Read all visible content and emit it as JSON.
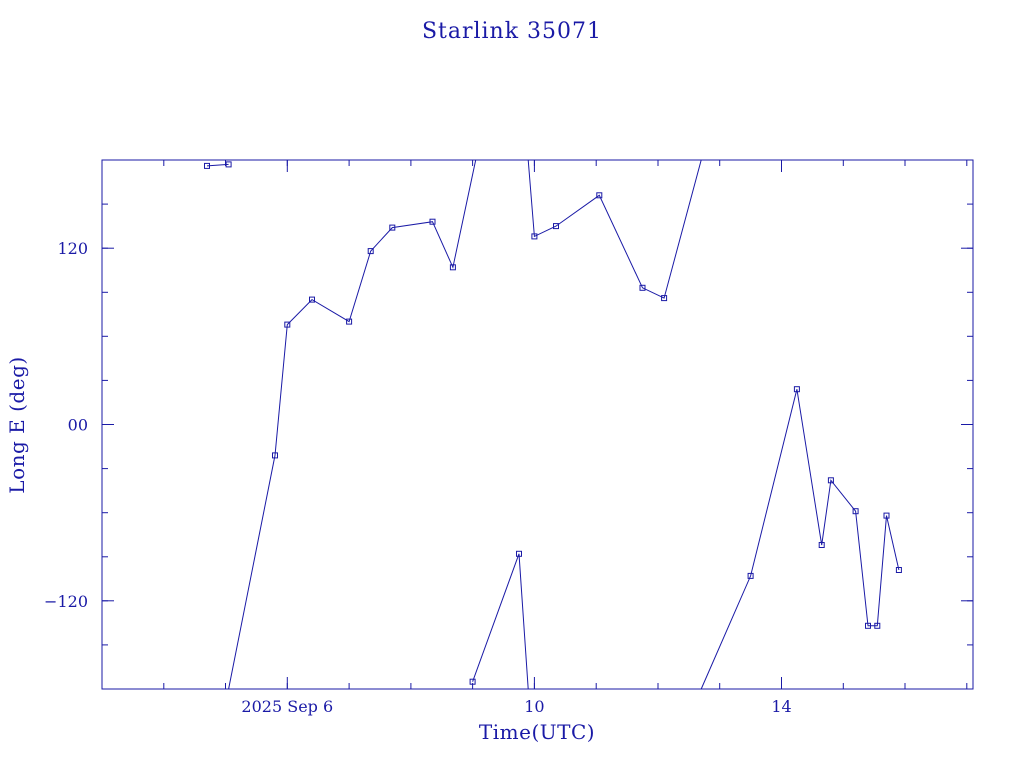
{
  "chart_data": {
    "type": "line",
    "title": "Starlink 35071",
    "xlabel": "Time(UTC)",
    "ylabel": "Long E (deg)",
    "colors": {
      "ink": "#1a1aa6"
    },
    "x_range_days": [
      3.0,
      17.1
    ],
    "ylim": [
      -180,
      180
    ],
    "x_reference": "2025-09-03T00:00Z",
    "x_ticks": [
      {
        "day": 6,
        "label": "2025 Sep  6"
      },
      {
        "day": 10,
        "label": "10"
      },
      {
        "day": 14,
        "label": "14"
      }
    ],
    "y_ticks": [
      {
        "value": 120,
        "label": "120"
      },
      {
        "value": 0,
        "label": "00"
      },
      {
        "value": -120,
        "label": "−120"
      }
    ],
    "grid": false,
    "segments": [
      {
        "points": [
          [
            4.7,
            176
          ],
          [
            5.05,
            177
          ]
        ]
      },
      {
        "points": [
          [
            5.05,
            -180
          ],
          [
            5.8,
            -21
          ],
          [
            6.0,
            68
          ],
          [
            6.4,
            85
          ],
          [
            7.0,
            70
          ],
          [
            7.35,
            118
          ],
          [
            7.7,
            134
          ],
          [
            8.35,
            138
          ],
          [
            8.68,
            107
          ],
          [
            9.05,
            180
          ]
        ]
      },
      {
        "points": [
          [
            9.0,
            -175
          ],
          [
            9.75,
            -88
          ],
          [
            9.9,
            -180
          ]
        ]
      },
      {
        "points": [
          [
            9.9,
            180
          ],
          [
            10.0,
            128
          ],
          [
            10.35,
            135
          ],
          [
            11.05,
            156
          ],
          [
            11.75,
            93
          ],
          [
            12.1,
            86
          ],
          [
            12.7,
            180
          ]
        ]
      },
      {
        "points": [
          [
            12.7,
            -180
          ],
          [
            13.5,
            -103
          ],
          [
            14.25,
            24
          ],
          [
            14.65,
            -82
          ],
          [
            14.8,
            -38
          ],
          [
            15.2,
            -59
          ],
          [
            15.4,
            -137
          ],
          [
            15.55,
            -137
          ],
          [
            15.7,
            -62
          ],
          [
            15.9,
            -99
          ]
        ]
      }
    ]
  }
}
